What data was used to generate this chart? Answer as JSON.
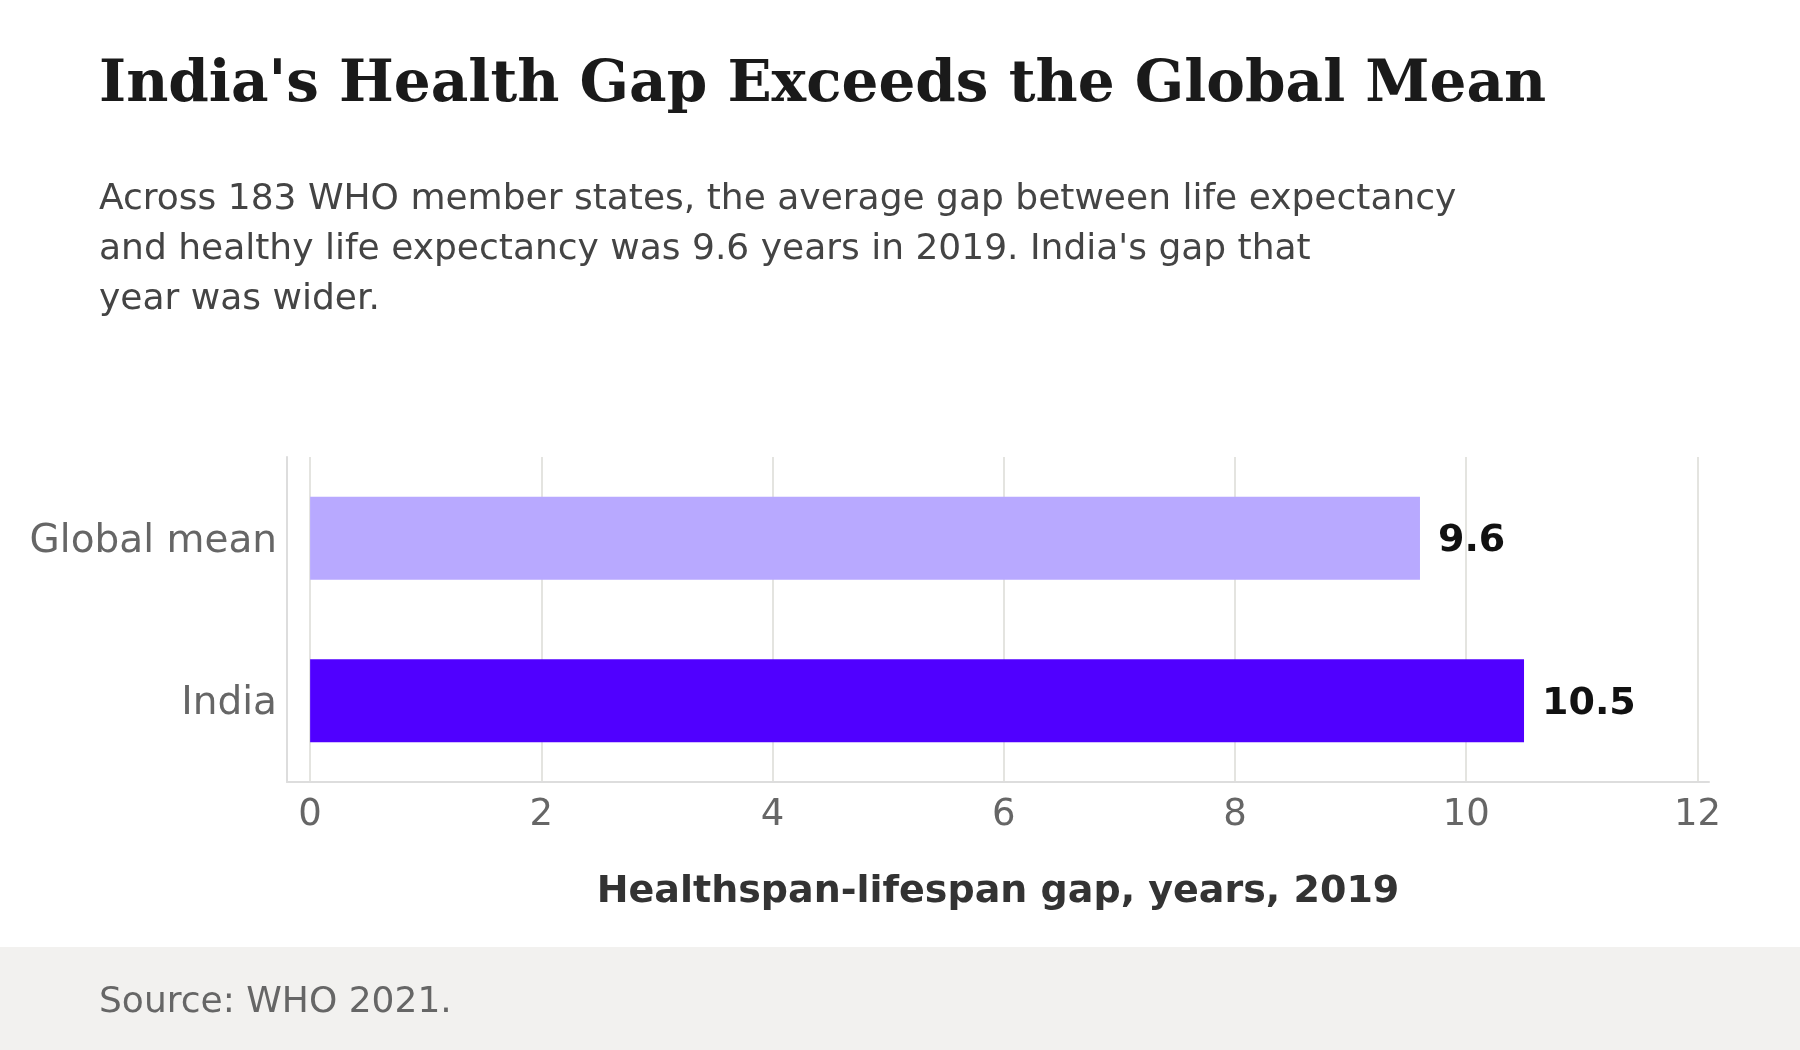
{
  "chart_data": {
    "type": "bar",
    "orientation": "horizontal",
    "title": "India's Health Gap Exceeds the Global Mean",
    "subtitle": "Across 183 WHO member states, the average gap between life expectancy and healthy life expectancy was 9.6 years in 2019. India's gap that year was wider.",
    "xlabel": "Healthspan-lifespan gap, years, 2019",
    "categories": [
      "Global mean",
      "India"
    ],
    "values": [
      9.6,
      10.5
    ],
    "colors": [
      "#b8a9ff",
      "#5000ff"
    ],
    "xlim": [
      -0.2,
      12.1
    ],
    "xticks": [
      0,
      2,
      4,
      6,
      8,
      10,
      12
    ],
    "grid": "x",
    "data_labels": true,
    "annotations": [
      "Source: WHO 2021."
    ]
  }
}
